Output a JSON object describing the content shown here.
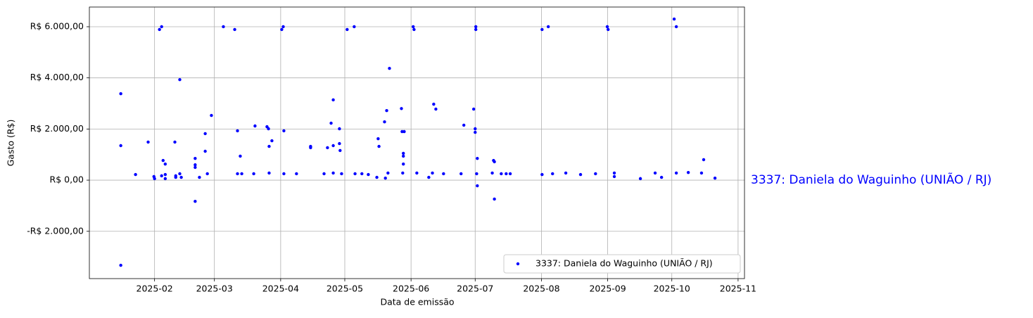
{
  "chart_data": {
    "type": "scatter",
    "xlabel": "Data de emissão",
    "ylabel": "Gasto (R$)",
    "annotation": "3337: Daniela do Waguinho (UNIÃO / RJ)",
    "xlim": [
      1.5,
      308
    ],
    "ylim": [
      -3850,
      6770
    ],
    "xticks": [
      {
        "value": 32,
        "label": "2025-02"
      },
      {
        "value": 60,
        "label": "2025-03"
      },
      {
        "value": 91,
        "label": "2025-04"
      },
      {
        "value": 121,
        "label": "2025-05"
      },
      {
        "value": 152,
        "label": "2025-06"
      },
      {
        "value": 182,
        "label": "2025-07"
      },
      {
        "value": 213,
        "label": "2025-08"
      },
      {
        "value": 244,
        "label": "2025-09"
      },
      {
        "value": 274,
        "label": "2025-10"
      },
      {
        "value": 305,
        "label": "2025-11"
      }
    ],
    "yticks": [
      {
        "value": -2000,
        "label": "-R$ 2.000,00"
      },
      {
        "value": 0,
        "label": "R$ 0,00"
      },
      {
        "value": 2000,
        "label": "R$ 2.000,00"
      },
      {
        "value": 4000,
        "label": "R$ 4.000,00"
      },
      {
        "value": 6000,
        "label": "R$ 6.000,00"
      }
    ],
    "grid": true,
    "legend": "lower right",
    "series": [
      {
        "name": "3337: Daniela do Waguinho (UNIÃO / RJ)",
        "color": "#0000ff",
        "x": [
          16.2,
          16.2,
          16.2,
          23.1,
          29,
          31.7,
          32,
          34.3,
          35.3,
          35.3,
          36,
          37,
          37,
          37,
          41.5,
          41.9,
          41.9,
          43.8,
          43.8,
          44.5,
          51,
          51,
          51,
          51,
          53,
          55.7,
          55.7,
          56.7,
          58.6,
          64.2,
          69.5,
          70.8,
          70.8,
          72.1,
          72.8,
          78.4,
          79,
          84.6,
          85.3,
          85.6,
          85.6,
          86.9,
          91.5,
          92.2,
          92.5,
          92.5,
          98.4,
          105,
          105,
          111.3,
          112.9,
          114.6,
          115.6,
          115.6,
          115.6,
          118.5,
          118.5,
          118.8,
          119.5,
          122.1,
          125.4,
          125.8,
          129,
          132,
          136,
          136.6,
          137,
          139.6,
          140,
          140.6,
          141.2,
          141.9,
          147.5,
          147.8,
          148.8,
          148.4,
          148.4,
          148.4,
          148.1,
          153,
          153.4,
          154.7,
          160.3,
          162,
          162.6,
          163.6,
          167.2,
          175.4,
          176.7,
          181.3,
          182,
          182,
          182.3,
          182.3,
          183,
          182.7,
          183,
          190,
          190.6,
          191,
          191,
          194.2,
          196.5,
          198.4,
          213.3,
          213.3,
          216.2,
          218.2,
          224.4,
          231.3,
          238.3,
          243.8,
          244.2,
          247.1,
          247.1,
          259.3,
          266.2,
          269.2,
          275.1,
          276.1,
          276.1,
          281.7,
          287.9,
          288.9,
          294.2
        ],
        "values": [
          3380,
          1350,
          -3330,
          220,
          1490,
          140,
          60,
          5890,
          6000,
          170,
          770,
          630,
          220,
          60,
          1490,
          170,
          110,
          3930,
          250,
          110,
          850,
          600,
          500,
          -830,
          110,
          1130,
          1820,
          250,
          2530,
          6000,
          5890,
          1930,
          250,
          940,
          250,
          250,
          2120,
          2090,
          2010,
          1320,
          280,
          1540,
          5890,
          6000,
          1930,
          250,
          250,
          1320,
          1270,
          250,
          1270,
          2230,
          3140,
          1350,
          280,
          1430,
          2010,
          1160,
          250,
          5890,
          6000,
          250,
          250,
          220,
          110,
          1620,
          1320,
          2280,
          80,
          2720,
          280,
          4370,
          2800,
          1900,
          1900,
          1050,
          940,
          630,
          280,
          6000,
          5890,
          280,
          110,
          280,
          2970,
          2780,
          250,
          250,
          2150,
          2780,
          2010,
          1870,
          6000,
          5890,
          850,
          250,
          -220,
          280,
          770,
          720,
          -740,
          250,
          250,
          250,
          5890,
          220,
          6000,
          250,
          280,
          220,
          250,
          6000,
          5890,
          280,
          140,
          60,
          280,
          110,
          6300,
          6000,
          280,
          300,
          280,
          800,
          80
        ]
      }
    ]
  }
}
